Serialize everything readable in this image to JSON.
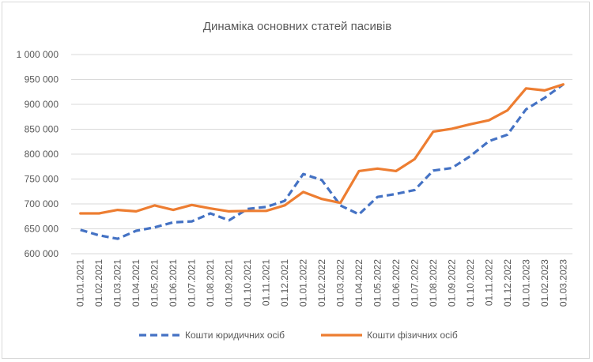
{
  "chart_data": {
    "type": "line",
    "title": "Динаміка основних статей пасивів",
    "xlabel": "",
    "ylabel": "",
    "ylim": [
      600000,
      1000000
    ],
    "yticks": [
      600000,
      650000,
      700000,
      750000,
      800000,
      850000,
      900000,
      950000,
      1000000
    ],
    "ytick_labels": [
      "600 000",
      "650 000",
      "700 000",
      "750 000",
      "800 000",
      "850 000",
      "900 000",
      "950 000",
      "1 000 000"
    ],
    "grid": true,
    "legend_position": "bottom",
    "categories": [
      "01.01.2021",
      "01.02.2021",
      "01.03.2021",
      "01.04.2021",
      "01.05.2021",
      "01.06.2021",
      "01.07.2021",
      "01.08.2021",
      "01.09.2021",
      "01.10.2021",
      "01.11.2021",
      "01.12.2021",
      "01.01.2022",
      "01.02.2022",
      "01.03.2022",
      "01.04.2022",
      "01.05.2022",
      "01.06.2022",
      "01.07.2022",
      "01.08.2022",
      "01.09.2022",
      "01.10.2022",
      "01.11.2022",
      "01.12.2022",
      "01.01.2023",
      "01.02.2023",
      "01.03.2023"
    ],
    "series": [
      {
        "name": "Кошти юридичних осіб",
        "color": "#4472c4",
        "dash": true,
        "values": [
          648000,
          637000,
          630000,
          646000,
          653000,
          663000,
          665000,
          681000,
          667000,
          690000,
          694000,
          706000,
          760000,
          748000,
          697000,
          679000,
          714000,
          720000,
          728000,
          767000,
          772000,
          796000,
          826000,
          839000,
          890000,
          913000,
          940000
        ]
      },
      {
        "name": "Кошти фізичних осіб",
        "color": "#ed7d31",
        "dash": false,
        "values": [
          681000,
          681000,
          688000,
          685000,
          697000,
          688000,
          698000,
          691000,
          685000,
          686000,
          686000,
          697000,
          724000,
          710000,
          702000,
          766000,
          771000,
          766000,
          790000,
          845000,
          851000,
          860000,
          868000,
          888000,
          932000,
          928000,
          940000
        ]
      }
    ]
  }
}
